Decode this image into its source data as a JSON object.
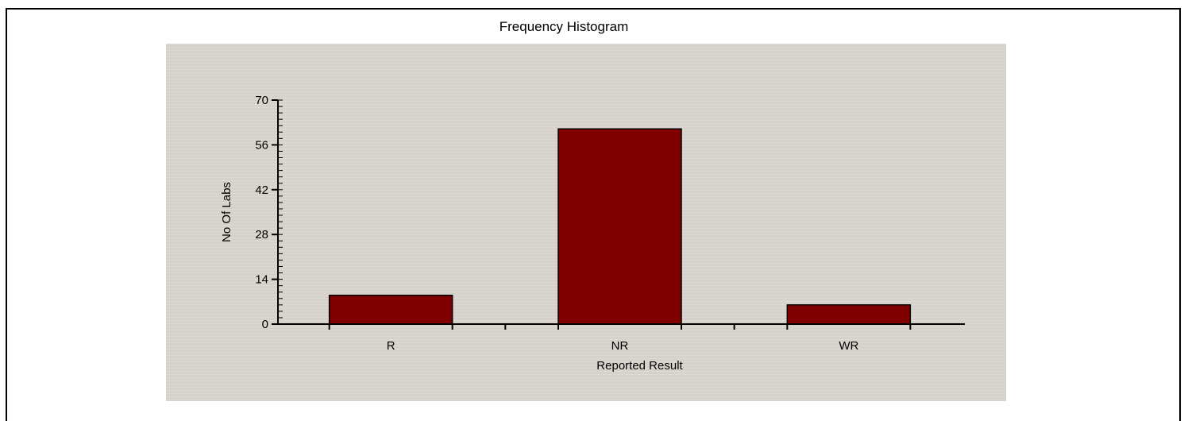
{
  "chart_data": {
    "type": "bar",
    "title": "Frequency Histogram",
    "xlabel": "Reported Result",
    "ylabel": "No Of Labs",
    "categories": [
      "R",
      "NR",
      "WR"
    ],
    "values": [
      9,
      61,
      6
    ],
    "ylim": [
      0,
      70
    ],
    "yticks": [
      0,
      14,
      28,
      42,
      56,
      70
    ],
    "colors": {
      "bar": "#800000",
      "background": "#d6d2cb"
    },
    "grid": false,
    "legend": "none"
  }
}
